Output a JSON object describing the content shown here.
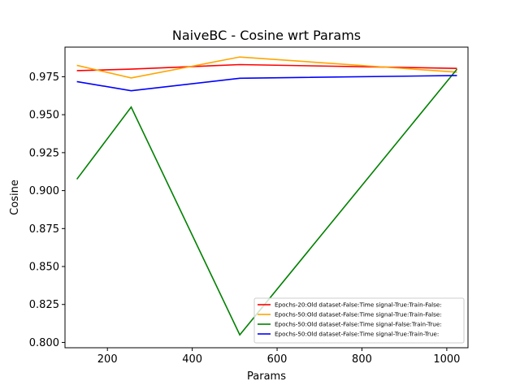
{
  "chart_data": {
    "type": "line",
    "title": "NaiveBC - Cosine wrt Params",
    "xlabel": "Params",
    "ylabel": "Cosine",
    "xlim": [
      100,
      1050
    ],
    "ylim": [
      0.7965,
      0.9945
    ],
    "x_ticks": [
      200,
      400,
      600,
      800,
      1000
    ],
    "x_tick_labels": [
      "200",
      "400",
      "600",
      "800",
      "1000"
    ],
    "y_ticks": [
      0.8,
      0.825,
      0.85,
      0.875,
      0.9,
      0.925,
      0.95,
      0.975
    ],
    "y_tick_labels": [
      "0.800",
      "0.825",
      "0.850",
      "0.875",
      "0.900",
      "0.925",
      "0.950",
      "0.975"
    ],
    "grid": false,
    "legend_position": "lower-right",
    "x": [
      128,
      256,
      512,
      1024
    ],
    "series": [
      {
        "name": "Epochs-20:Old dataset-False:Time signal-True:Train-False:",
        "color": "#ff0000",
        "values": [
          0.979,
          0.98,
          0.983,
          0.9805
        ]
      },
      {
        "name": "Epochs-50:Old dataset-False:Time signal-True:Train-False:",
        "color": "#ffa500",
        "values": [
          0.9825,
          0.9742,
          0.988,
          0.978
        ]
      },
      {
        "name": "Epochs-50:Old dataset-False:Time signal-False:Train-True:",
        "color": "#008000",
        "values": [
          0.9075,
          0.955,
          0.805,
          0.98
        ]
      },
      {
        "name": "Epochs-50:Old dataset-False:Time signal-True:Train-True:",
        "color": "#0000ff",
        "values": [
          0.9718,
          0.9658,
          0.974,
          0.9758
        ]
      }
    ]
  }
}
